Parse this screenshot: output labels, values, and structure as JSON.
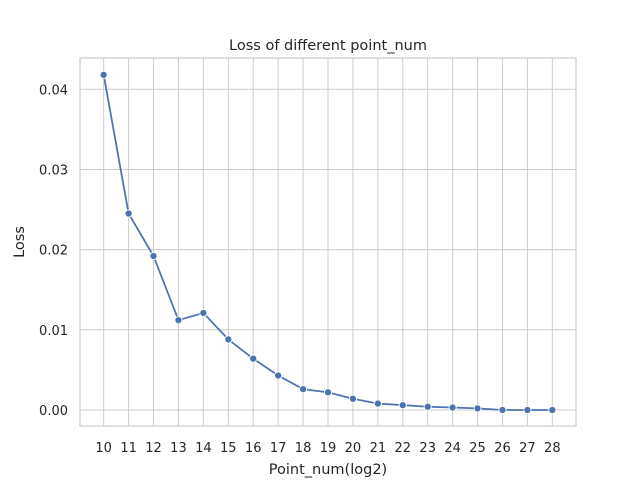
{
  "chart_data": {
    "type": "line",
    "title": "Loss of different point_num",
    "xlabel": "Point_num(log2)",
    "ylabel": "Loss",
    "x": [
      10,
      11,
      12,
      13,
      14,
      15,
      16,
      17,
      18,
      19,
      20,
      21,
      22,
      23,
      24,
      25,
      26,
      27,
      28
    ],
    "series": [
      {
        "values": [
          0.0418,
          0.0245,
          0.0192,
          0.0112,
          0.0121,
          0.0088,
          0.0064,
          0.0043,
          0.0026,
          0.0022,
          0.0014,
          0.0008,
          0.0006,
          0.0004,
          0.0003,
          0.0002,
          0.0,
          0.0,
          0.0
        ],
        "color": "#4c72b0",
        "marker": "circle"
      }
    ],
    "xlim": [
      9.05,
      28.95
    ],
    "ylim": [
      -0.002,
      0.0439
    ],
    "x_ticks": [
      "10",
      "11",
      "12",
      "13",
      "14",
      "15",
      "16",
      "17",
      "18",
      "19",
      "20",
      "21",
      "22",
      "23",
      "24",
      "25",
      "26",
      "27",
      "28"
    ],
    "y_ticks": [
      "0.00",
      "0.01",
      "0.02",
      "0.03",
      "0.04"
    ],
    "grid": true,
    "colors": {
      "line": "#4c72b0",
      "grid": "#cccccc",
      "spine": "#cccccc",
      "background": "#ffffff"
    }
  }
}
